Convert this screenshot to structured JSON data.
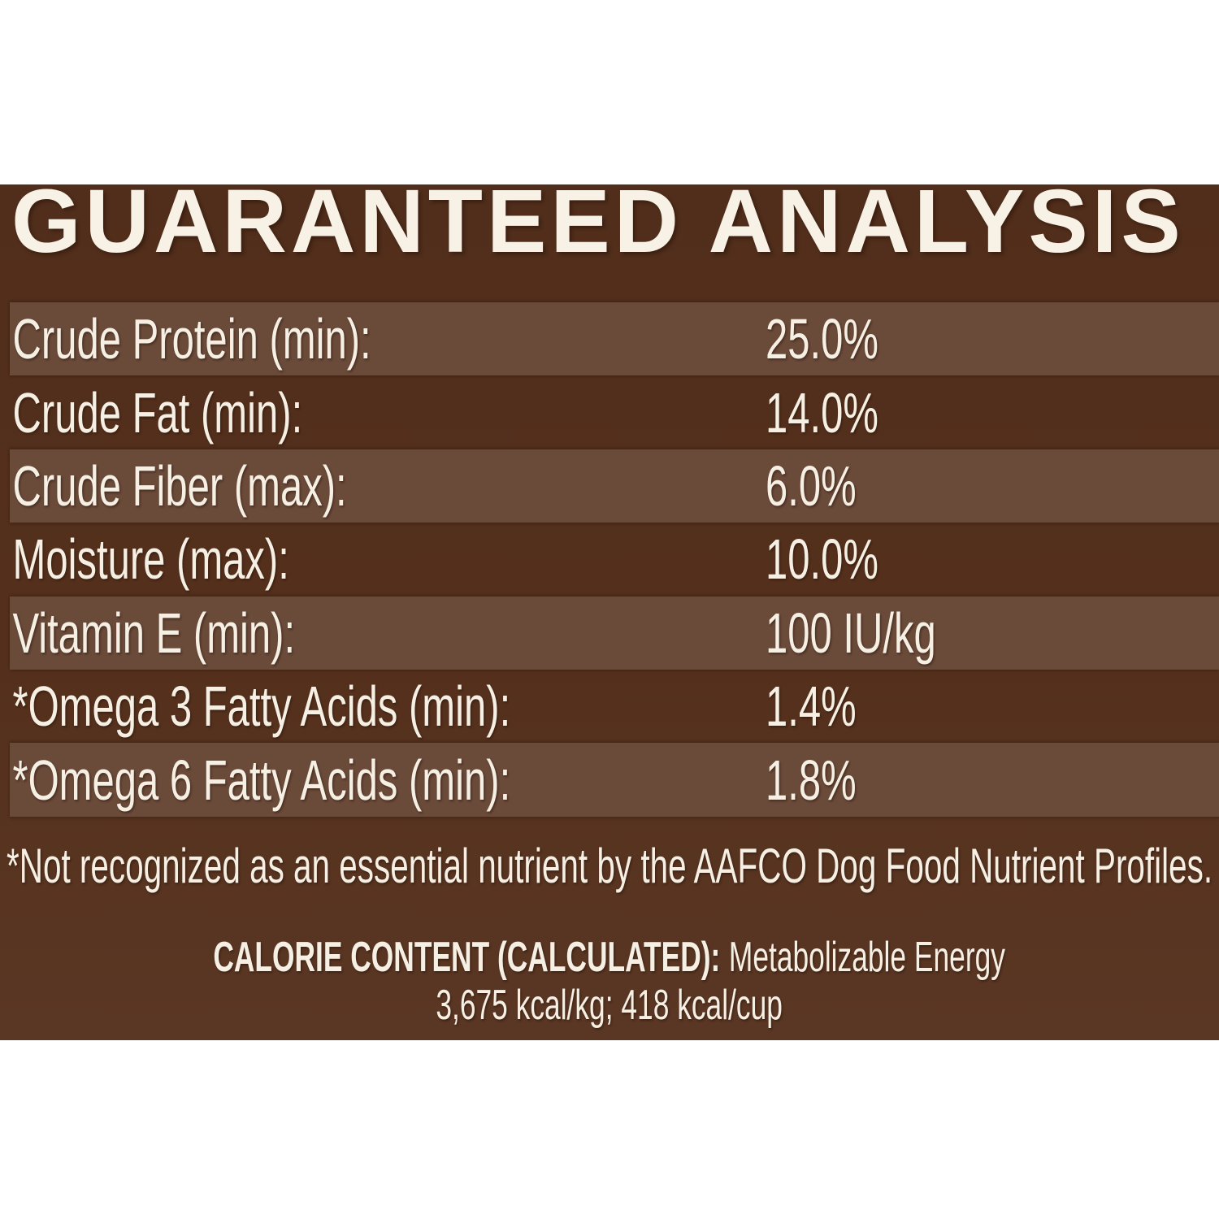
{
  "title": "GUARANTEED ANALYSIS",
  "table": {
    "rows": [
      {
        "label": "Crude Protein (min):",
        "value": "25.0%"
      },
      {
        "label": "Crude Fat (min):",
        "value": "14.0%"
      },
      {
        "label": "Crude Fiber (max):",
        "value": "6.0%"
      },
      {
        "label": "Moisture (max):",
        "value": "10.0%"
      },
      {
        "label": "Vitamin E (min):",
        "value": "100 IU/kg"
      },
      {
        "label": "*Omega 3 Fatty Acids (min):",
        "value": "1.4%"
      },
      {
        "label": "*Omega 6 Fatty Acids (min):",
        "value": "1.8%"
      }
    ]
  },
  "footnote": "*Not recognized as an essential nutrient by the AAFCO Dog Food Nutrient Profiles.",
  "calorie_content": {
    "label": "CALORIE CONTENT (CALCULATED):",
    "description": "Metabolizable Energy",
    "values": "3,675 kcal/kg; 418 kcal/cup"
  },
  "colors": {
    "page_background": "#FFFFFF",
    "panel_background": "#54301C",
    "stripe": "#6A4A39",
    "text": "#F5EFE4"
  }
}
